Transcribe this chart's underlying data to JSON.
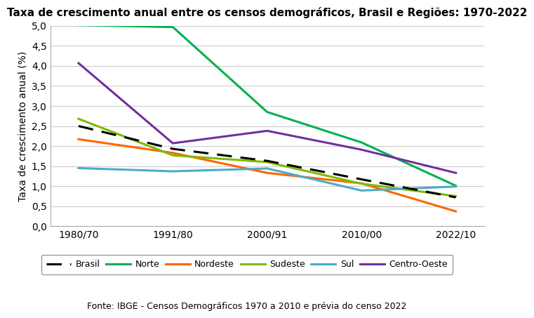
{
  "title": "Taxa de crescimento anual entre os censos demográficos, Brasil e Regiões: 1970-2022",
  "ylabel": "Taxa de crescimento anual (%)",
  "source": "Fonte: IBGE - Censos Demográficos 1970 a 2010 e prévia do censo 2022",
  "x_labels": [
    "1980/70",
    "1991/80",
    "2000/91",
    "2010/00",
    "2022/10"
  ],
  "x_positions": [
    0,
    1,
    2,
    3,
    4
  ],
  "ylim": [
    0.0,
    5.0
  ],
  "yticks": [
    0.0,
    0.5,
    1.0,
    1.5,
    2.0,
    2.5,
    3.0,
    3.5,
    4.0,
    4.5,
    5.0
  ],
  "series": {
    "Brasil": {
      "values": [
        2.5,
        1.93,
        1.63,
        1.17,
        0.72
      ],
      "color": "#000000",
      "linestyle": "dashed",
      "linewidth": 2.2
    },
    "Norte": {
      "values": [
        5.02,
        4.97,
        2.85,
        2.09,
        1.01
      ],
      "color": "#00b050",
      "linestyle": "solid",
      "linewidth": 2.2
    },
    "Nordeste": {
      "values": [
        2.17,
        1.83,
        1.33,
        1.07,
        0.37
      ],
      "color": "#ff6600",
      "linestyle": "solid",
      "linewidth": 2.2
    },
    "Sudeste": {
      "values": [
        2.68,
        1.77,
        1.6,
        1.06,
        0.75
      ],
      "color": "#7cbb00",
      "linestyle": "solid",
      "linewidth": 2.2
    },
    "Sul": {
      "values": [
        1.45,
        1.37,
        1.44,
        0.89,
        0.99
      ],
      "color": "#4bacc6",
      "linestyle": "solid",
      "linewidth": 2.2
    },
    "Centro-Oeste": {
      "values": [
        4.07,
        2.07,
        2.38,
        1.91,
        1.33
      ],
      "color": "#7030a0",
      "linestyle": "solid",
      "linewidth": 2.2
    }
  },
  "legend_order": [
    "Brasil",
    "Norte",
    "Nordeste",
    "Sudeste",
    "Sul",
    "Centro-Oeste"
  ],
  "background_color": "#ffffff",
  "grid_color": "#cccccc",
  "title_fontsize": 11,
  "axis_label_fontsize": 10,
  "tick_fontsize": 10,
  "legend_fontsize": 9,
  "source_fontsize": 9
}
